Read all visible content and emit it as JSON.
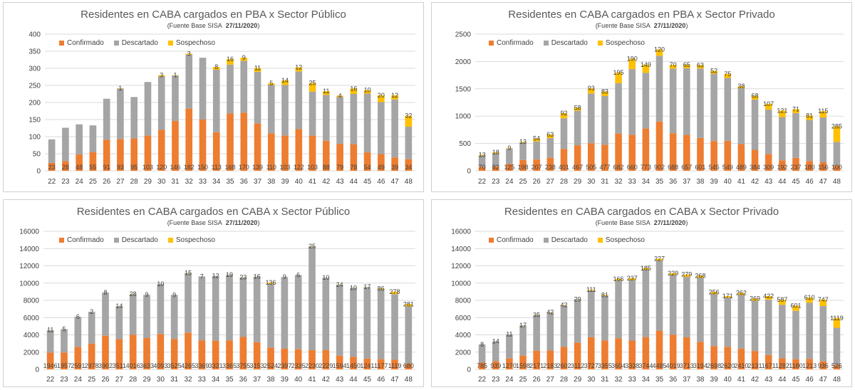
{
  "colors": {
    "confirmado": "#ED7D31",
    "descartado": "#A5A5A5",
    "sospechoso": "#FFC000",
    "grid": "#d9d9d9",
    "text": "#404040"
  },
  "chart_data": [
    {
      "type": "bar",
      "stacked": true,
      "title": "Residentes en CABA cargados en PBA x Sector Público",
      "subtitle_prefix": "(Fuente  Base SISA",
      "subtitle_date": "27/11/2020",
      "subtitle_suffix": ")",
      "legend": [
        "Confirmado",
        "Descartado",
        "Sospechoso"
      ],
      "legend_position": "top-left",
      "grid": true,
      "categories": [
        "22",
        "23",
        "24",
        "25",
        "26",
        "27",
        "28",
        "29",
        "30",
        "31",
        "32",
        "33",
        "34",
        "35",
        "36",
        "37",
        "38",
        "39",
        "40",
        "41",
        "42",
        "43",
        "44",
        "45",
        "46",
        "47",
        "48"
      ],
      "yticks": [
        "0",
        "50",
        "100",
        "150",
        "200",
        "250",
        "300",
        "350",
        "400"
      ],
      "ylim": [
        0,
        400
      ],
      "series": [
        {
          "name": "Confirmado",
          "values": [
            23,
            28,
            48,
            55,
            91,
            93,
            95,
            103,
            120,
            146,
            182,
            150,
            113,
            168,
            170,
            139,
            110,
            103,
            122,
            103,
            88,
            79,
            78,
            54,
            49,
            39,
            34
          ]
        },
        {
          "name": "Descartado",
          "values": [
            69,
            98,
            88,
            78,
            120,
            148,
            121,
            157,
            157,
            133,
            158,
            181,
            183,
            143,
            152,
            151,
            141,
            148,
            169,
            129,
            134,
            137,
            147,
            172,
            152,
            170,
            95
          ]
        },
        {
          "name": "Sospechoso",
          "values": [
            0,
            0,
            0,
            0,
            0,
            1,
            0,
            0,
            3,
            1,
            3,
            0,
            8,
            16,
            9,
            11,
            5,
            14,
            12,
            25,
            11,
            4,
            16,
            10,
            20,
            12,
            32
          ]
        }
      ],
      "labels": {
        "Confirmado": [
          "23",
          "28",
          "48",
          "55",
          "91",
          "93",
          "95",
          "103",
          "120",
          "146",
          "182",
          "150",
          "113",
          "168",
          "170",
          "139",
          "110",
          "103",
          "122",
          "103",
          "88",
          "79",
          "78",
          "54",
          "49",
          "39",
          "34"
        ],
        "Sospechoso": [
          "",
          "",
          "",
          "",
          "",
          "1",
          "",
          "",
          "3",
          "1",
          "3",
          "",
          "8",
          "16",
          "9",
          "11",
          "5",
          "14",
          "12",
          "25",
          "11",
          "4",
          "16",
          "10",
          "20",
          "12",
          "32"
        ]
      }
    },
    {
      "type": "bar",
      "stacked": true,
      "title": "Residentes en CABA cargados en PBA x Sector Privado",
      "subtitle_prefix": "(Fuente  Base SISA",
      "subtitle_date": "27/11/2020",
      "subtitle_suffix": ")",
      "legend": [
        "Confirmado",
        "Descartado",
        "Sospechoso"
      ],
      "legend_position": "top-left",
      "grid": true,
      "categories": [
        "22",
        "23",
        "24",
        "25",
        "26",
        "27",
        "28",
        "29",
        "30",
        "31",
        "32",
        "33",
        "34",
        "35",
        "36",
        "37",
        "38",
        "39",
        "40",
        "41",
        "42",
        "43",
        "44",
        "45",
        "46",
        "47",
        "48"
      ],
      "yticks": [
        "0",
        "500",
        "1000",
        "1500",
        "2000",
        "2500"
      ],
      "ylim": [
        0,
        2500
      ],
      "series": [
        {
          "name": "Confirmado",
          "values": [
            70,
            82,
            125,
            198,
            207,
            238,
            401,
            467,
            505,
            477,
            682,
            660,
            773,
            902,
            688,
            657,
            601,
            545,
            549,
            489,
            384,
            309,
            192,
            237,
            180,
            156,
            100
          ]
        },
        {
          "name": "Descartado",
          "values": [
            210,
            240,
            280,
            320,
            330,
            360,
            560,
            630,
            910,
            890,
            920,
            1200,
            1020,
            1200,
            1180,
            1220,
            1270,
            1230,
            1150,
            1020,
            920,
            810,
            790,
            820,
            750,
            820,
            430
          ]
        },
        {
          "name": "Sospechoso",
          "values": [
            13,
            18,
            9,
            13,
            54,
            63,
            92,
            58,
            93,
            83,
            195,
            190,
            149,
            120,
            70,
            65,
            63,
            52,
            75,
            38,
            68,
            107,
            121,
            71,
            81,
            115,
            285
          ]
        }
      ],
      "labels": {
        "Confirmado": [
          "70",
          "82",
          "125",
          "198",
          "207",
          "238",
          "401",
          "467",
          "505",
          "477",
          "682",
          "660",
          "773",
          "902",
          "688",
          "657",
          "601",
          "545",
          "549",
          "489",
          "384",
          "309",
          "192",
          "237",
          "180",
          "156",
          "100"
        ],
        "Sospechoso": [
          "13",
          "18",
          "9",
          "13",
          "54",
          "63",
          "92",
          "58",
          "93",
          "83",
          "195",
          "190",
          "149",
          "120",
          "70",
          "65",
          "63",
          "52",
          "75",
          "38",
          "68",
          "107",
          "121",
          "71",
          "81",
          "115",
          "285"
        ]
      }
    },
    {
      "type": "bar",
      "stacked": true,
      "title": "Residentes en CABA cargados en CABA x Sector Público",
      "subtitle_prefix": "(Fuente  Base SISA",
      "subtitle_date": "27/11/2020",
      "subtitle_suffix": ")",
      "legend": [
        "Confirmado",
        "Descartado",
        "Sospechoso"
      ],
      "legend_position": "top-left",
      "grid": true,
      "categories": [
        "22",
        "23",
        "24",
        "25",
        "26",
        "27",
        "28",
        "29",
        "30",
        "31",
        "32",
        "33",
        "34",
        "35",
        "36",
        "37",
        "38",
        "39",
        "40",
        "41",
        "42",
        "43",
        "44",
        "45",
        "46",
        "47",
        "48"
      ],
      "yticks": [
        "0",
        "2000",
        "4000",
        "6000",
        "8000",
        "10000",
        "12000",
        "14000",
        "16000"
      ],
      "ylim": [
        0,
        16000
      ],
      "series": [
        {
          "name": "Confirmado",
          "values": [
            1946,
            1957,
            2591,
            2978,
            3902,
            3511,
            4016,
            3633,
            4093,
            3525,
            4265,
            3369,
            3331,
            3365,
            3755,
            3153,
            2524,
            2397,
            2335,
            2230,
            2229,
            1594,
            1450,
            1241,
            1177,
            1119,
            680
          ]
        },
        {
          "name": "Descartado",
          "values": [
            2600,
            2700,
            3500,
            3700,
            5000,
            3800,
            4700,
            5000,
            5800,
            5100,
            6900,
            7400,
            7500,
            7600,
            6900,
            7600,
            7400,
            8300,
            8600,
            12000,
            8400,
            8200,
            8000,
            8300,
            8100,
            7600,
            6600
          ]
        },
        {
          "name": "Sospechoso",
          "values": [
            11,
            5,
            6,
            2,
            8,
            14,
            28,
            9,
            10,
            9,
            15,
            7,
            12,
            19,
            23,
            16,
            136,
            9,
            6,
            25,
            10,
            24,
            10,
            17,
            86,
            278,
            281
          ]
        }
      ],
      "labels": {
        "Confirmado": [
          "1946",
          "1957",
          "2591",
          "2978",
          "3902",
          "3511",
          "4016",
          "3633",
          "4093",
          "3525",
          "4265",
          "3369",
          "3331",
          "3365",
          "3755",
          "3153",
          "2524",
          "2397",
          "2335",
          "2230",
          "2229",
          "1594",
          "1450",
          "1241",
          "1177",
          "1119",
          "680"
        ],
        "Sospechoso": [
          "11",
          "5",
          "6",
          "2",
          "8",
          "14",
          "28",
          "9",
          "10",
          "9",
          "15",
          "7",
          "12",
          "19",
          "23",
          "16",
          "136",
          "9",
          "6",
          "25",
          "10",
          "24",
          "10",
          "17",
          "86",
          "278",
          "281"
        ]
      }
    },
    {
      "type": "bar",
      "stacked": true,
      "title": "Residentes en CABA cargados en CABA x Sector Privado",
      "subtitle_prefix": "(Fuente  Base SISA",
      "subtitle_date": "27/11/2020",
      "subtitle_suffix": ")",
      "legend": [
        "Confirmado",
        "Descartado",
        "Sospechoso"
      ],
      "legend_position": "top-left",
      "grid": true,
      "categories": [
        "22",
        "23",
        "24",
        "25",
        "26",
        "27",
        "28",
        "29",
        "30",
        "31",
        "32",
        "33",
        "34",
        "35",
        "36",
        "37",
        "38",
        "39",
        "40",
        "41",
        "42",
        "43",
        "44",
        "45",
        "46",
        "47",
        "48"
      ],
      "yticks": [
        "0",
        "2000",
        "4000",
        "6000",
        "8000",
        "10000",
        "12000",
        "14000",
        "16000"
      ],
      "ylim": [
        0,
        16000
      ],
      "series": [
        {
          "name": "Confirmado",
          "values": [
            785,
            939,
            1270,
            1598,
            2171,
            2183,
            2602,
            3112,
            3727,
            3355,
            3604,
            3338,
            3744,
            4485,
            4019,
            3713,
            3194,
            2698,
            2620,
            2410,
            2131,
            1671,
            1282,
            1180,
            1213,
            936,
            526
          ]
        },
        {
          "name": "Descartado",
          "values": [
            2100,
            2300,
            2800,
            3500,
            4100,
            4400,
            4800,
            5000,
            5400,
            5200,
            6700,
            7000,
            7800,
            8100,
            6900,
            7000,
            7400,
            6000,
            5700,
            6200,
            5800,
            6400,
            6200,
            5600,
            6500,
            6400,
            4300
          ]
        },
        {
          "name": "Sospechoso",
          "values": [
            8,
            14,
            11,
            17,
            35,
            42,
            42,
            29,
            111,
            81,
            166,
            237,
            185,
            227,
            229,
            279,
            268,
            256,
            171,
            262,
            269,
            422,
            587,
            601,
            610,
            747,
            1119
          ]
        }
      ],
      "labels": {
        "Confirmado": [
          "785",
          "939",
          "1270",
          "1598",
          "2171",
          "2183",
          "2602",
          "3112",
          "3727",
          "3355",
          "3604",
          "3338",
          "3744",
          "4485",
          "4019",
          "3713",
          "3194",
          "2698",
          "2620",
          "2410",
          "2131",
          "1671",
          "1282",
          "1180",
          "1213",
          "936",
          "526"
        ],
        "Sospechoso": [
          "8",
          "14",
          "11",
          "17",
          "35",
          "42",
          "42",
          "29",
          "111",
          "81",
          "166",
          "237",
          "185",
          "227",
          "229",
          "279",
          "268",
          "256",
          "171",
          "262",
          "269",
          "422",
          "587",
          "601",
          "610",
          "747",
          "1119"
        ]
      }
    }
  ]
}
